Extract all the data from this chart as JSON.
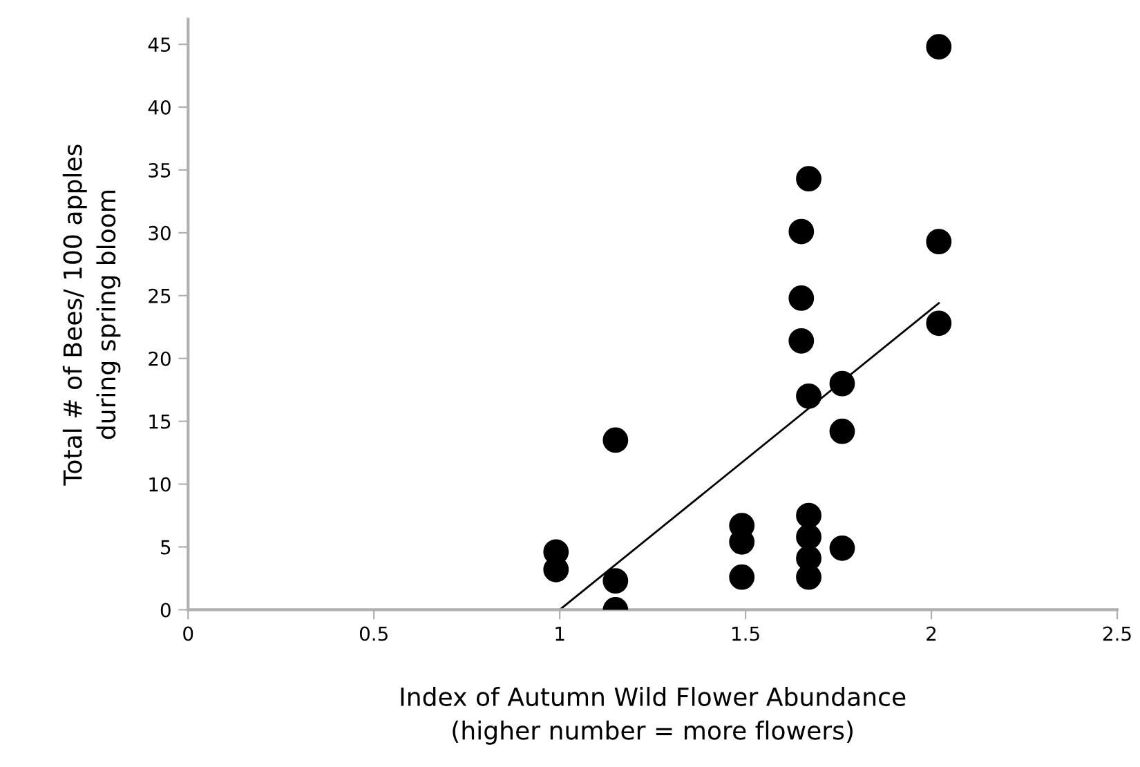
{
  "chart_data": {
    "type": "scatter",
    "xlabel": "Index of Autumn Wild Flower Abundance\n(higher number = more flowers)",
    "ylabel": "Total # of Bees/ 100 apples\nduring spring bloom",
    "xlim": [
      0,
      2.5
    ],
    "xticks": [
      0,
      0.5,
      1,
      1.5,
      2,
      2.5
    ],
    "ylim": [
      0,
      47
    ],
    "yticks": [
      0,
      5,
      10,
      15,
      20,
      25,
      30,
      35,
      40,
      45
    ],
    "grid": false,
    "legend": false,
    "marker": "circle",
    "series": [
      {
        "type": "scatter",
        "color": "#000000",
        "x": [
          0.99,
          0.99,
          1.15,
          1.15,
          1.15,
          1.49,
          1.49,
          1.49,
          1.65,
          1.65,
          1.65,
          1.67,
          1.67,
          1.67,
          1.67,
          1.67,
          1.67,
          1.76,
          1.76,
          1.76,
          2.02,
          2.02,
          2.02
        ],
        "values": [
          4.6,
          3.2,
          13.5,
          2.3,
          0,
          6.7,
          5.4,
          2.6,
          30.1,
          24.8,
          21.4,
          34.3,
          17.0,
          7.5,
          5.8,
          4.1,
          2.6,
          18.0,
          14.2,
          4.9,
          44.8,
          29.3,
          22.8
        ]
      },
      {
        "type": "line",
        "color": "#000000",
        "marker": "none",
        "line_style": "solid",
        "x": [
          1.0,
          2.02
        ],
        "values": [
          0,
          24.4
        ]
      }
    ]
  }
}
